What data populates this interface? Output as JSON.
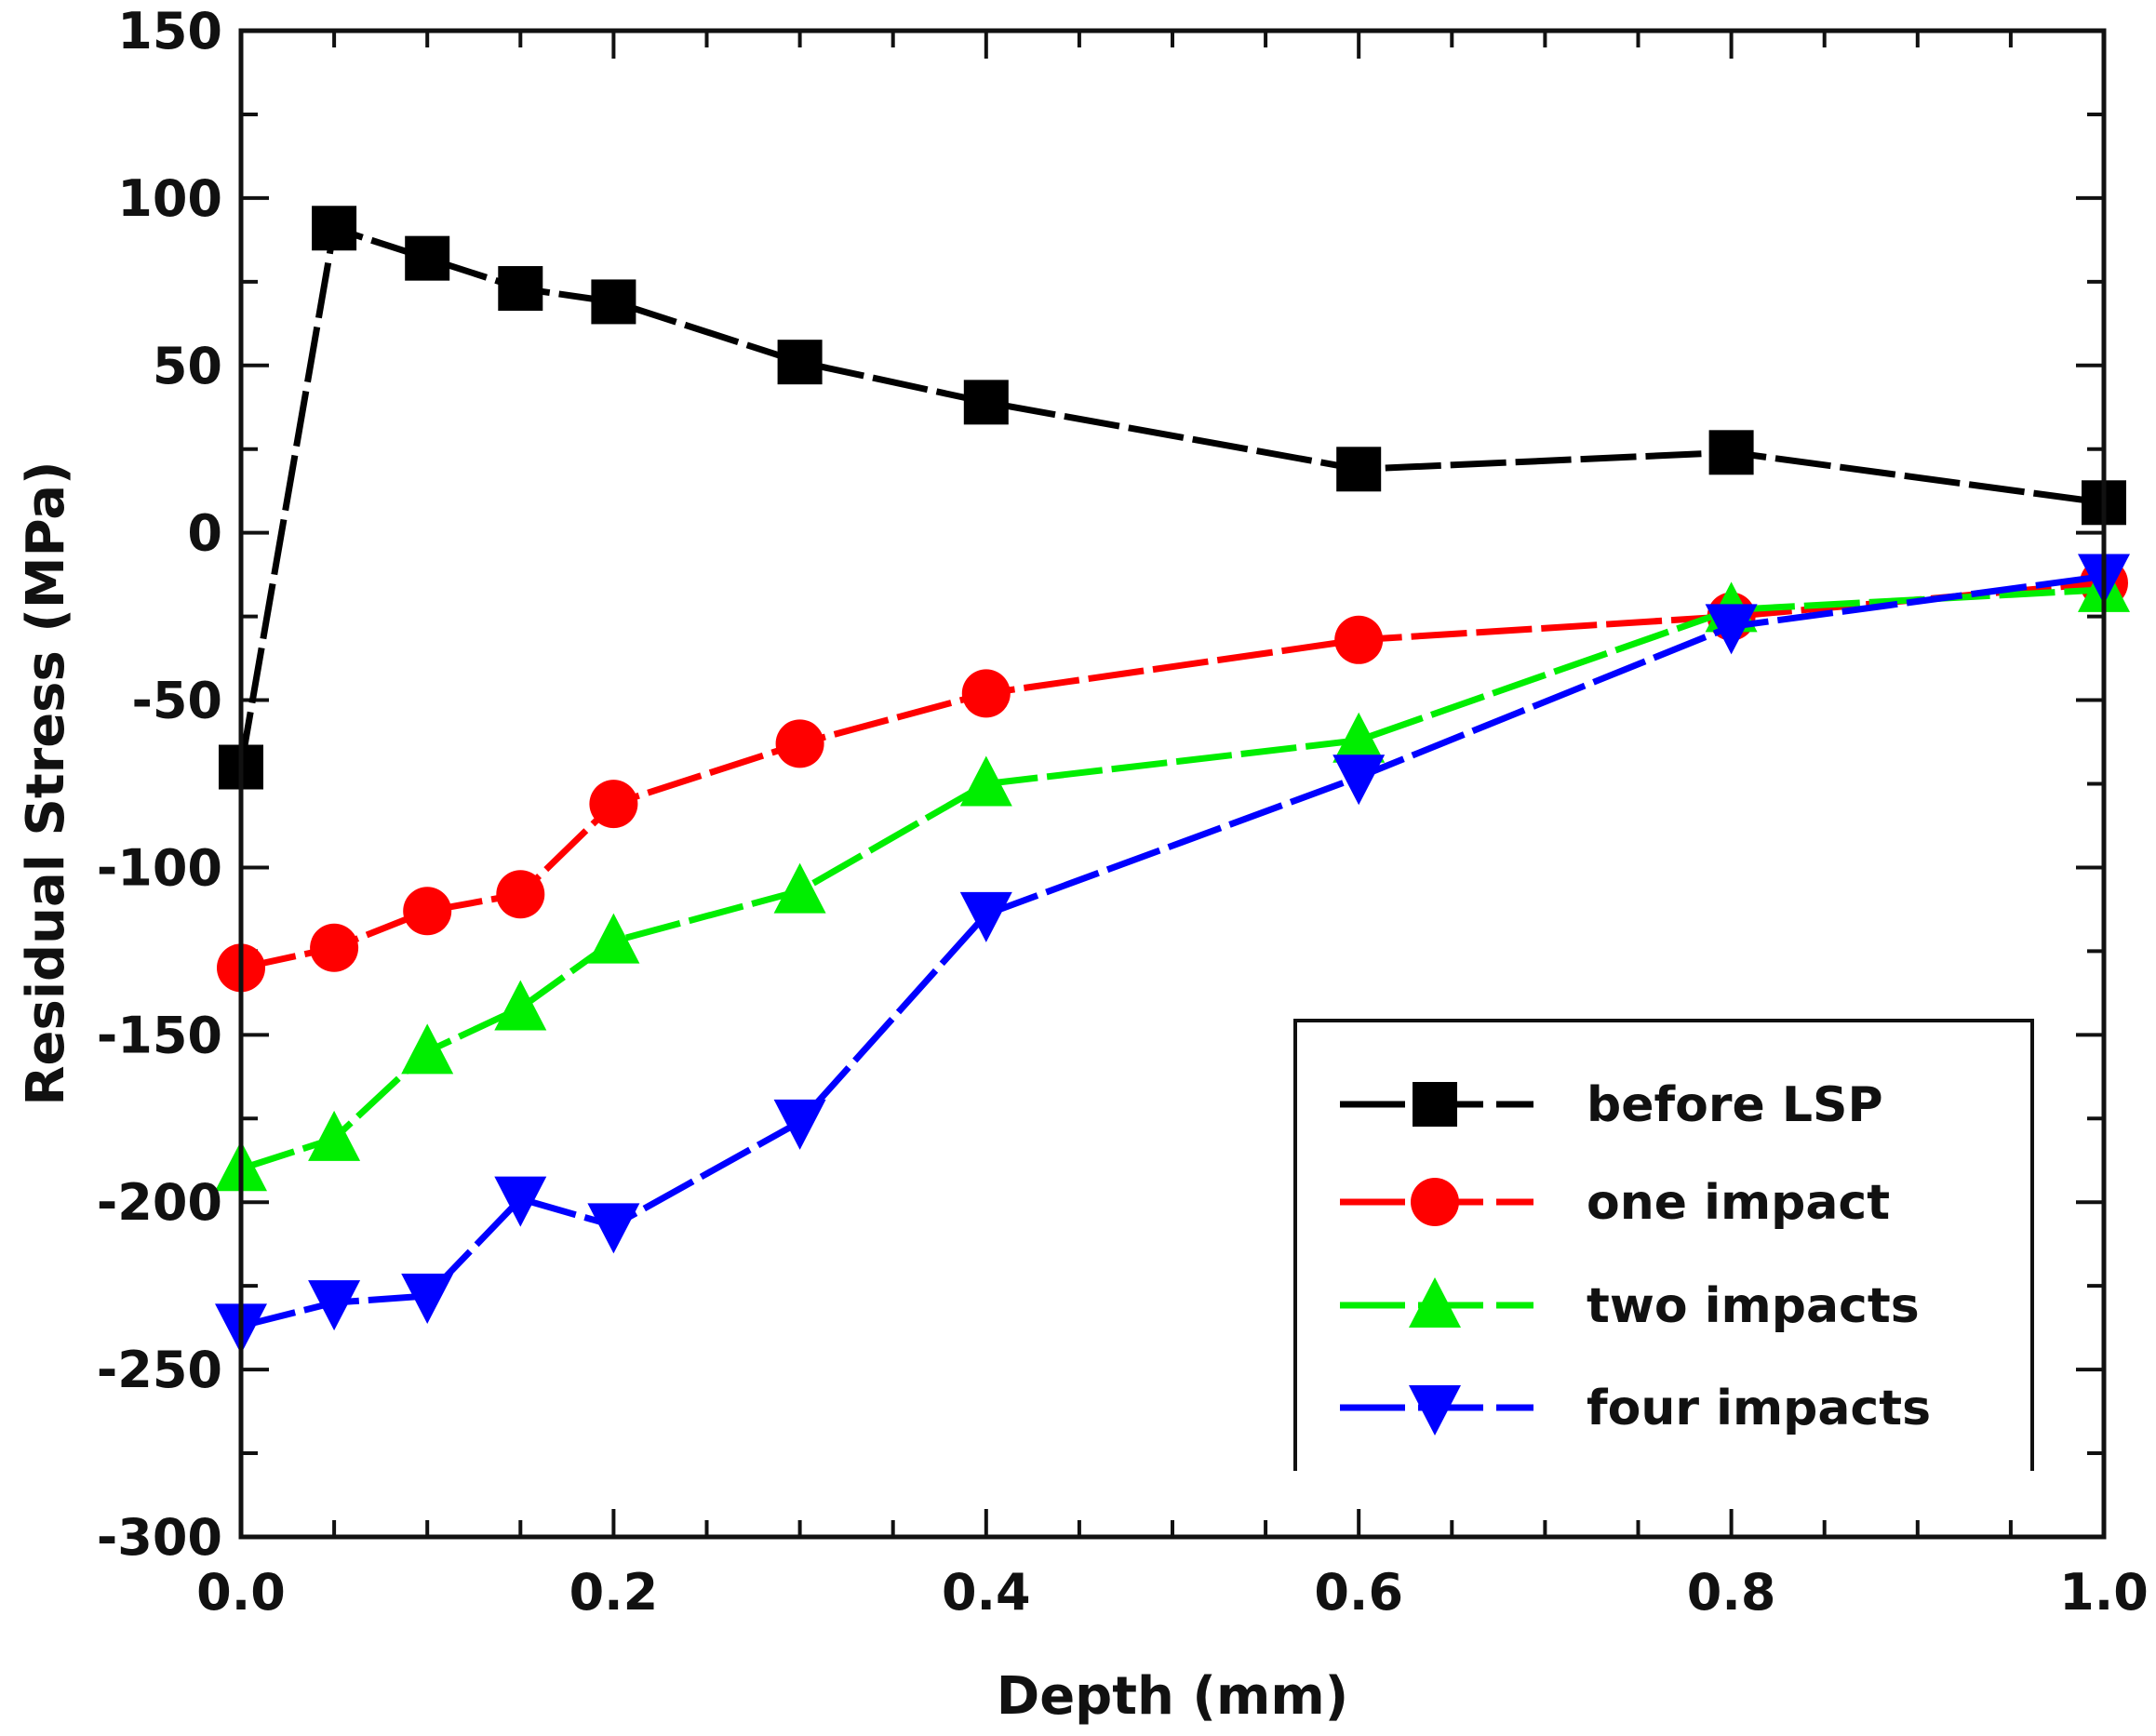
{
  "chart_data": {
    "type": "line",
    "title": "",
    "xlabel": "Depth (mm)",
    "ylabel": "Residual Stress (MPa)",
    "xlim": [
      0.0,
      1.0
    ],
    "ylim": [
      -300,
      150
    ],
    "xticks": [
      "0.0",
      "0.2",
      "0.4",
      "0.6",
      "0.8",
      "1.0"
    ],
    "yticks": [
      "150",
      "100",
      "50",
      "0",
      "-50",
      "-100",
      "-150",
      "-200",
      "-250",
      "-300"
    ],
    "grid": false,
    "legend_position": "bottom-right",
    "x": [
      0.0,
      0.05,
      0.1,
      0.15,
      0.2,
      0.3,
      0.4,
      0.6,
      0.8,
      1.0
    ],
    "series": [
      {
        "name": "before LSP",
        "color": "#000000",
        "marker": "square",
        "values": [
          -70,
          91,
          82,
          73,
          69,
          51,
          39,
          19,
          24,
          9
        ]
      },
      {
        "name": "one impact",
        "color": "#ff0000",
        "marker": "circle",
        "values": [
          -130,
          -124,
          -113,
          -108,
          -81,
          -63,
          -48,
          -32,
          -25,
          -15
        ]
      },
      {
        "name": "two impacts",
        "color": "#00ee00",
        "marker": "triangle-up",
        "values": [
          -190,
          -181,
          -155,
          -142,
          -122,
          -107,
          -75,
          -62,
          -23,
          -17
        ]
      },
      {
        "name": "four impacts",
        "color": "#0000ff",
        "marker": "triangle-down",
        "values": [
          -237,
          -230,
          -228,
          -199,
          -207,
          -176,
          -114,
          -73,
          -28,
          -13
        ]
      }
    ]
  }
}
